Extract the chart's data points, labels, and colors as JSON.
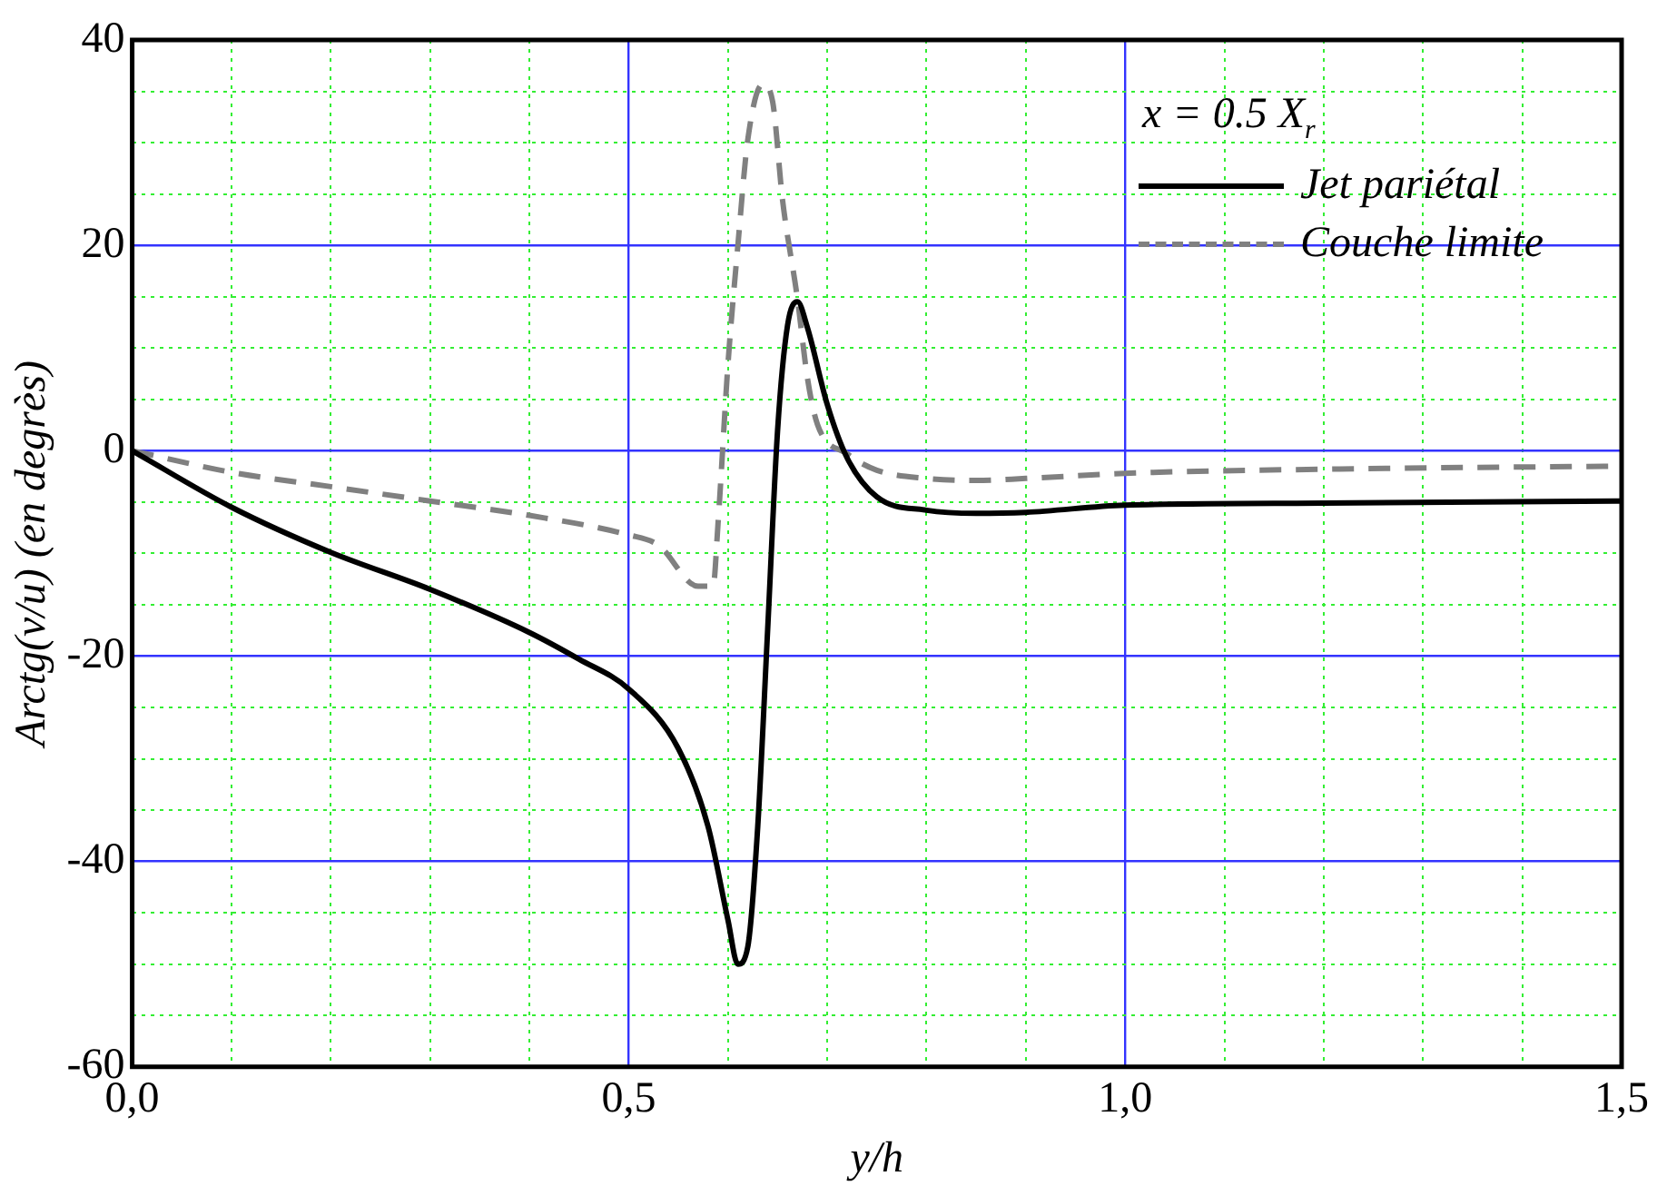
{
  "chart_data": {
    "type": "line",
    "xlabel": "y/h",
    "ylabel": "Arctg(v/u) (en degrès)",
    "legend_title": "x = 0.5 X$_{r}$",
    "legend": "top right",
    "grid": true,
    "xlim": [
      0,
      1.5
    ],
    "ylim": [
      -60,
      40
    ],
    "xticks": [
      {
        "value": 0,
        "label": "0,0"
      },
      {
        "value": 0.1,
        "label": null
      },
      {
        "value": 0.2,
        "label": null
      },
      {
        "value": 0.3,
        "label": null
      },
      {
        "value": 0.4,
        "label": null
      },
      {
        "value": 0.5,
        "label": "0,5"
      },
      {
        "value": 0.6,
        "label": null
      },
      {
        "value": 0.7,
        "label": null
      },
      {
        "value": 0.8,
        "label": null
      },
      {
        "value": 0.9,
        "label": null
      },
      {
        "value": 1.0,
        "label": "1,0"
      },
      {
        "value": 1.1,
        "label": null
      },
      {
        "value": 1.2,
        "label": null
      },
      {
        "value": 1.3,
        "label": null
      },
      {
        "value": 1.4,
        "label": null
      },
      {
        "value": 1.5,
        "label": "1,5"
      }
    ],
    "yticks": [
      -60,
      {
        "value": -55,
        "label": null
      },
      {
        "value": -50,
        "label": null
      },
      {
        "value": -45,
        "label": null
      },
      -40,
      {
        "value": -35,
        "label": null
      },
      {
        "value": -30,
        "label": null
      },
      {
        "value": -25,
        "label": null
      },
      -20,
      {
        "value": -15,
        "label": null
      },
      {
        "value": -10,
        "label": null
      },
      {
        "value": -5,
        "label": null
      },
      0,
      {
        "value": 5,
        "label": null
      },
      {
        "value": 10,
        "label": null
      },
      {
        "value": 15,
        "label": null
      },
      20,
      {
        "value": 25,
        "label": null
      },
      {
        "value": 30,
        "label": null
      },
      {
        "value": 35,
        "label": null
      },
      40
    ],
    "series": [
      {
        "name": "Jet pariétal",
        "color": "#000000",
        "line_style": "solid",
        "x": [
          0,
          0.1,
          0.2,
          0.3,
          0.4,
          0.45,
          0.5,
          0.55,
          0.58,
          0.6,
          0.61,
          0.62,
          0.63,
          0.64,
          0.65,
          0.66,
          0.67,
          0.68,
          0.7,
          0.72,
          0.75,
          0.8,
          0.85,
          0.9,
          1.0,
          1.2,
          1.5
        ],
        "values": [
          0,
          -5.5,
          -9.9,
          -13.5,
          -17.7,
          -20.3,
          -23.2,
          -29,
          -36.6,
          -45.7,
          -50,
          -48.3,
          -36.6,
          -17.4,
          2,
          12.2,
          14.5,
          12,
          4.5,
          -0.7,
          -4.5,
          -5.8,
          -6.1,
          -6,
          -5.3,
          -5.1,
          -4.9
        ]
      },
      {
        "name": "Couche limite",
        "color": "#808080",
        "line_style": "dashed",
        "x": [
          0,
          0.1,
          0.2,
          0.3,
          0.4,
          0.5,
          0.53,
          0.57,
          0.585,
          0.59,
          0.6,
          0.61,
          0.62,
          0.635,
          0.645,
          0.655,
          0.67,
          0.68,
          0.69,
          0.72,
          0.75,
          0.8,
          0.85,
          0.9,
          1.0,
          1.2,
          1.5
        ],
        "values": [
          0,
          -2.1,
          -3.5,
          -4.9,
          -6.3,
          -8.2,
          -9.2,
          -13.2,
          -13.2,
          -7.1,
          8.4,
          20,
          30.3,
          35.7,
          34,
          24.4,
          14.8,
          7.1,
          2.6,
          -0.3,
          -1.9,
          -2.7,
          -2.9,
          -2.7,
          -2.2,
          -1.8,
          -1.5
        ]
      }
    ]
  }
}
